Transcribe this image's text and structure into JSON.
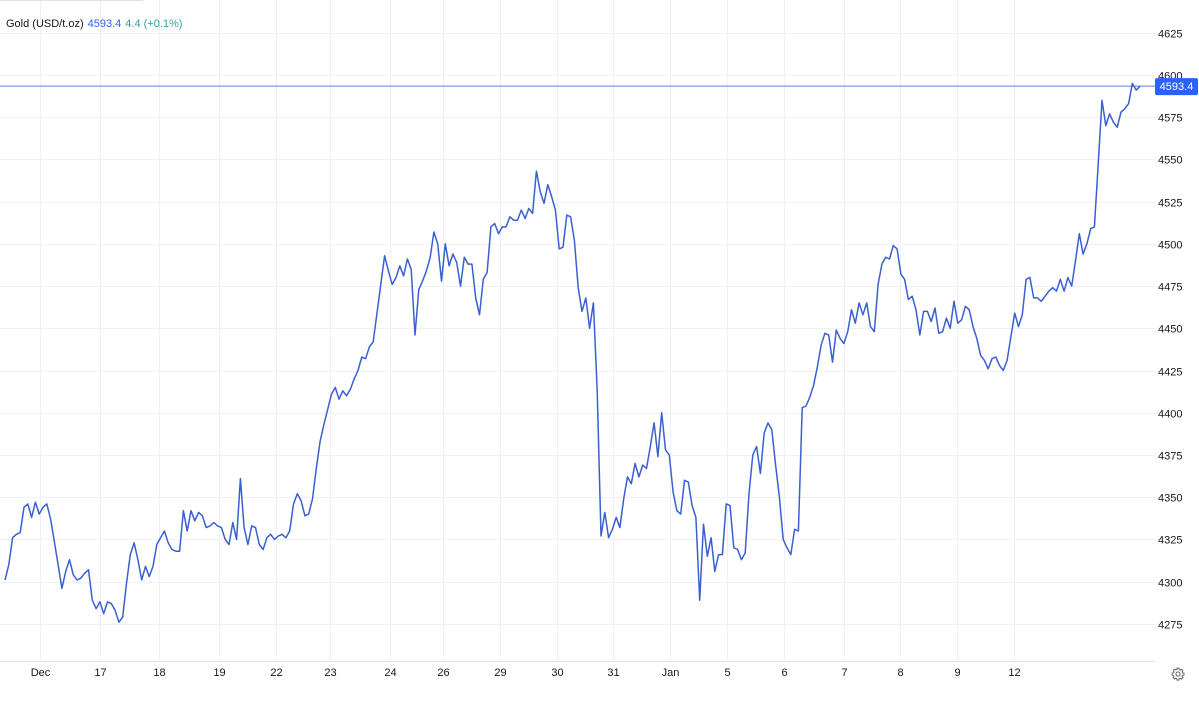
{
  "legend": {
    "symbol": "Gold (USD/t.oz)",
    "last": "4593.4",
    "change": "4.4 (+0.1%)"
  },
  "price_label": "4593.4",
  "colors": {
    "line": "#3a5fd0",
    "accent": "#2962ff",
    "up": "#26a69a",
    "grid": "#eef1f6",
    "axis_text": "#131722"
  },
  "icons": {
    "settings": "gear-icon"
  },
  "chart_data": {
    "type": "line",
    "title": "",
    "xlabel": "",
    "ylabel": "",
    "ylim": [
      4253,
      4642
    ],
    "y_ticks": [
      4275,
      4300,
      4325,
      4350,
      4375,
      4400,
      4425,
      4450,
      4475,
      4500,
      4525,
      4550,
      4575,
      4600,
      4625
    ],
    "x_labels": [
      "Dec",
      "17",
      "18",
      "19",
      "22",
      "23",
      "24",
      "26",
      "29",
      "30",
      "31",
      "Jan",
      "5",
      "6",
      "7",
      "8",
      "9",
      "12"
    ],
    "x_label_positions": [
      2.75,
      7.5,
      12.25,
      17,
      21.5,
      25.75,
      30.5,
      34.75,
      39.25,
      43.75,
      48.25,
      52.75,
      57.25,
      61.75,
      66.5,
      71,
      75.5,
      80
    ],
    "last_value": 4593.4,
    "grid": true,
    "series": [
      {
        "values": [
          4301,
          4310,
          4326,
          4328,
          4329,
          4344,
          4346,
          4338,
          4347,
          4340,
          4344,
          4346,
          4337,
          4324,
          4310,
          4296,
          4306,
          4313,
          4304,
          4301,
          4302,
          4305,
          4307,
          4289,
          4284,
          4288,
          4281,
          4288,
          4287,
          4283,
          4276,
          4279,
          4299,
          4316,
          4323,
          4313,
          4301,
          4309,
          4303,
          4309,
          4322,
          4326,
          4330,
          4323,
          4319,
          4318,
          4318,
          4342,
          4330,
          4342,
          4336,
          4341,
          4339,
          4332,
          4333,
          4335,
          4333,
          4332,
          4325,
          4322,
          4335,
          4325,
          4361,
          4332,
          4322,
          4333,
          4332,
          4322,
          4319,
          4326,
          4328,
          4325,
          4327,
          4328,
          4326,
          4330,
          4346,
          4352,
          4348,
          4339,
          4340,
          4349,
          4367,
          4383,
          4393,
          4402,
          4411,
          4415,
          4408,
          4413,
          4410,
          4414,
          4420,
          4425,
          4433,
          4432,
          4439,
          4442,
          4459,
          4476,
          4493,
          4484,
          4476,
          4480,
          4487,
          4481,
          4491,
          4485,
          4446,
          4473,
          4478,
          4484,
          4492,
          4507,
          4500,
          4478,
          4500,
          4487,
          4494,
          4489,
          4475,
          4492,
          4488,
          4488,
          4468,
          4458,
          4479,
          4483,
          4510,
          4512,
          4506,
          4510,
          4510,
          4516,
          4514,
          4514,
          4520,
          4515,
          4521,
          4518,
          4543,
          4531,
          4524,
          4535,
          4528,
          4520,
          4497,
          4498,
          4517,
          4516,
          4502,
          4474,
          4460,
          4468,
          4450,
          4465,
          4413,
          4327,
          4341,
          4326,
          4331,
          4338,
          4332,
          4349,
          4362,
          4358,
          4370,
          4362,
          4369,
          4367,
          4380,
          4394,
          4374,
          4400,
          4378,
          4375,
          4353,
          4342,
          4340,
          4360,
          4359,
          4345,
          4338,
          4289,
          4334,
          4315,
          4326,
          4306,
          4316,
          4316,
          4346,
          4345,
          4320,
          4319,
          4313,
          4317,
          4352,
          4375,
          4380,
          4364,
          4388,
          4394,
          4390,
          4369,
          4350,
          4325,
          4320,
          4316,
          4331,
          4330,
          4403,
          4404,
          4409,
          4416,
          4427,
          4440,
          4447,
          4446,
          4430,
          4449,
          4444,
          4441,
          4448,
          4461,
          4453,
          4465,
          4458,
          4465,
          4451,
          4448,
          4476,
          4488,
          4492,
          4491,
          4499,
          4497,
          4482,
          4479,
          4467,
          4469,
          4461,
          4446,
          4460,
          4460,
          4454,
          4462,
          4447,
          4448,
          4456,
          4450,
          4466,
          4453,
          4455,
          4463,
          4461,
          4451,
          4444,
          4434,
          4431,
          4426,
          4432,
          4433,
          4428,
          4425,
          4431,
          4445,
          4459,
          4451,
          4458,
          4479,
          4480,
          4468,
          4468,
          4466,
          4469,
          4472,
          4474,
          4472,
          4479,
          4472,
          4480,
          4475,
          4490,
          4506,
          4494,
          4500,
          4509,
          4510,
          4547,
          4585,
          4570,
          4577,
          4572,
          4569,
          4578,
          4580,
          4583,
          4595,
          4591,
          4593.4
        ]
      }
    ]
  }
}
